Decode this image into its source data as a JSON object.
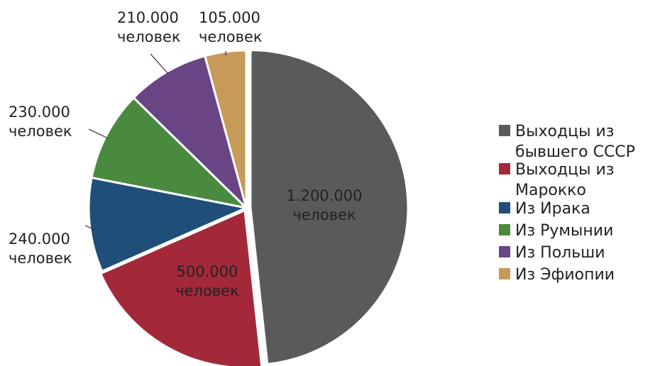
{
  "chart_data": {
    "type": "pie",
    "categories": [
      "Выходцы из бывшего СССР",
      "Выходцы из Марокко",
      "Из Ирака",
      "Из Румынии",
      "Из Польши",
      "Из Эфиопии"
    ],
    "values": [
      1200000,
      500000,
      240000,
      230000,
      210000,
      105000
    ],
    "data_labels": [
      [
        "1.200.000",
        "человек"
      ],
      [
        "500.000",
        "человек"
      ],
      [
        "240.000",
        "человек"
      ],
      [
        "230.000",
        "человек"
      ],
      [
        "210.000",
        "человек"
      ],
      [
        "105.000",
        "человек"
      ]
    ],
    "colors": [
      "#5a5a5a",
      "#a3293a",
      "#1f4e78",
      "#4a8a3e",
      "#6a4585",
      "#c79a5a"
    ],
    "legend": {
      "position": "right",
      "entries": [
        [
          "Выходцы из",
          "бывшего СССР"
        ],
        [
          "Выходцы из",
          "Марокко"
        ],
        [
          "Из Ирака"
        ],
        [
          "Из Румынии"
        ],
        [
          "Из Польши"
        ],
        [
          "Из Эфиопии"
        ]
      ]
    },
    "title": ""
  }
}
